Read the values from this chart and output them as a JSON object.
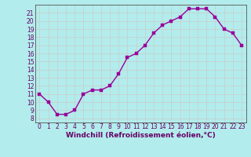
{
  "x": [
    0,
    1,
    2,
    3,
    4,
    5,
    6,
    7,
    8,
    9,
    10,
    11,
    12,
    13,
    14,
    15,
    16,
    17,
    18,
    19,
    20,
    21,
    22,
    23
  ],
  "y": [
    11,
    10,
    8.5,
    8.5,
    9,
    11,
    11.5,
    11.5,
    12,
    13.5,
    15.5,
    16,
    17,
    18.5,
    19.5,
    20,
    20.5,
    21.5,
    21.5,
    21.5,
    20.5,
    19,
    18.5,
    17
  ],
  "line_color": "#990099",
  "marker_color": "#990099",
  "bg_color": "#b3ecec",
  "grid_color": "#cccccc",
  "xlabel": "Windchill (Refroidissement éolien,°C)",
  "ylim_min": 7.5,
  "ylim_max": 22.0,
  "xlim_min": -0.5,
  "xlim_max": 23.5,
  "yticks": [
    8,
    9,
    10,
    11,
    12,
    13,
    14,
    15,
    16,
    17,
    18,
    19,
    20,
    21
  ],
  "xticks": [
    0,
    1,
    2,
    3,
    4,
    5,
    6,
    7,
    8,
    9,
    10,
    11,
    12,
    13,
    14,
    15,
    16,
    17,
    18,
    19,
    20,
    21,
    22,
    23
  ],
  "xlabel_fontsize": 6.5,
  "tick_fontsize": 5.5,
  "linewidth": 1.0,
  "markersize": 2.5,
  "spine_color": "#555555"
}
